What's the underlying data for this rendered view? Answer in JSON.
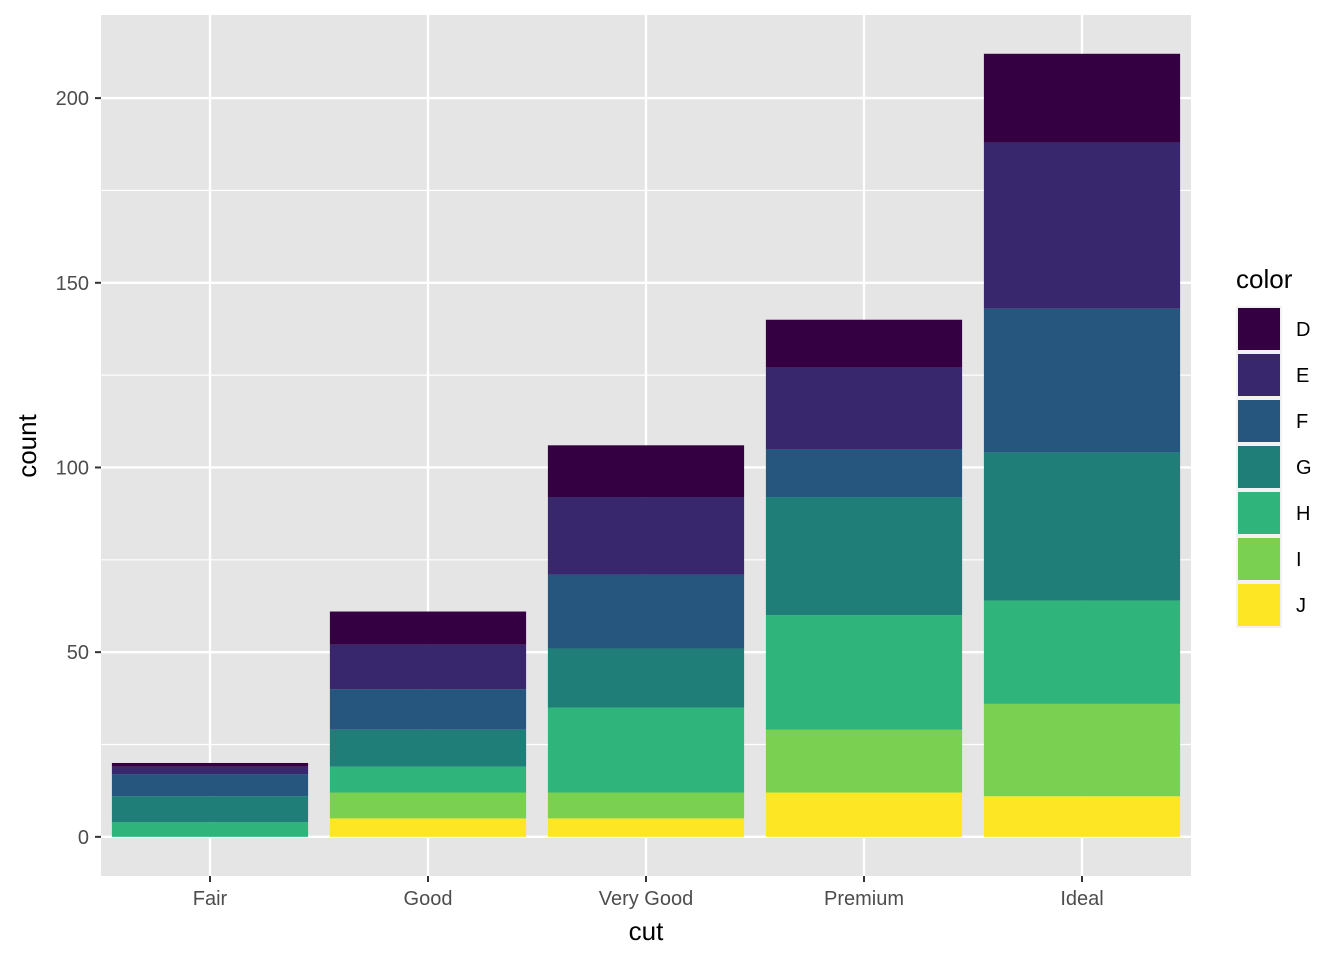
{
  "chart_data": {
    "type": "bar",
    "stacked": true,
    "xlabel": "cut",
    "ylabel": "count",
    "categories": [
      "Fair",
      "Good",
      "Very Good",
      "Premium",
      "Ideal"
    ],
    "ylim": [
      -10.6,
      222.5
    ],
    "yticks": [
      0,
      50,
      100,
      150,
      200
    ],
    "grid": true,
    "legend": {
      "title": "color",
      "placement": "right"
    },
    "series": [
      {
        "name": "J",
        "color": "#FDE725",
        "values": [
          0,
          5,
          5,
          12,
          11
        ]
      },
      {
        "name": "I",
        "color": "#7AD151",
        "values": [
          0,
          7,
          7,
          17,
          25
        ]
      },
      {
        "name": "H",
        "color": "#2FB47C",
        "values": [
          4,
          7,
          23,
          31,
          28
        ]
      },
      {
        "name": "G",
        "color": "#1F7F78",
        "values": [
          7,
          10,
          16,
          32,
          40
        ]
      },
      {
        "name": "F",
        "color": "#26567D",
        "values": [
          6,
          11,
          20,
          13,
          39
        ]
      },
      {
        "name": "E",
        "color": "#38276D",
        "values": [
          2,
          12,
          21,
          22,
          45
        ]
      },
      {
        "name": "D",
        "color": "#340042",
        "values": [
          1,
          9,
          14,
          13,
          24
        ]
      }
    ]
  }
}
